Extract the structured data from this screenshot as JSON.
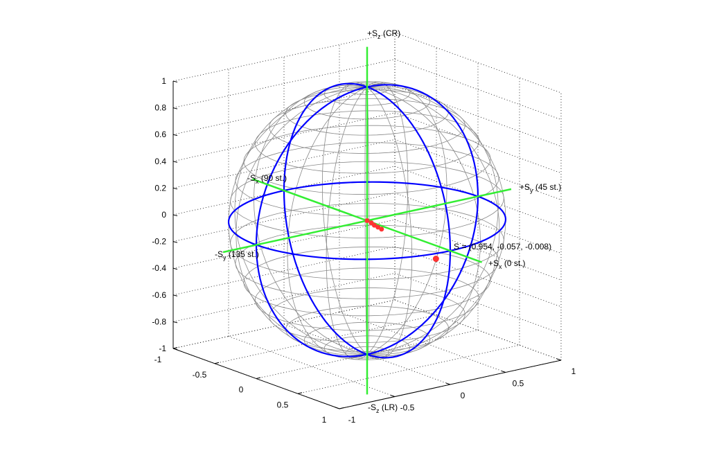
{
  "chart_data": {
    "type": "scatter3d",
    "title": "",
    "axes": {
      "x_ticks": [
        "-1",
        "-0.5",
        "0",
        "0.5",
        "1"
      ],
      "y_ticks": [
        "-1",
        "-0.5",
        "0",
        "0.5",
        "1"
      ],
      "z_ticks": [
        "-1",
        "-0.8",
        "-0.6",
        "-0.4",
        "-0.2",
        "0",
        "0.2",
        "0.4",
        "0.6",
        "0.8",
        "1"
      ],
      "xlim": [
        -1,
        1
      ],
      "ylim": [
        -1,
        1
      ],
      "zlim": [
        -1,
        1
      ],
      "grid": true
    },
    "sphere": {
      "type": "wireframe unit sphere",
      "mesh_color": "#888888",
      "great_circle_color": "#0000ff"
    },
    "axis_lines_color": "#33ee33",
    "axis_labels": {
      "pz": {
        "main": "+S",
        "sub": "z",
        "rest": " (CR)"
      },
      "mz": {
        "main": "-S",
        "sub": "z",
        "rest": " (LR)"
      },
      "py": {
        "main": "+S",
        "sub": "y",
        "rest": " (45 st.)"
      },
      "my": {
        "main": "-S",
        "sub": "y",
        "rest": " (135 st.)"
      },
      "px": {
        "main": "+S",
        "sub": "x",
        "rest": " (0 st.)"
      },
      "mx": {
        "main": "-S",
        "sub": "x",
        "rest": " (90 st.)"
      }
    },
    "point_annotation": "S = (0.954, -0.057, -0.008)",
    "point": {
      "x": 0.954,
      "y": -0.057,
      "z": -0.008,
      "color": "#ff3333"
    },
    "trajectory": [
      [
        0.0,
        0.0,
        0.0
      ],
      [
        0.05,
        0.0,
        -0.005
      ],
      [
        0.1,
        -0.01,
        -0.01
      ],
      [
        0.15,
        -0.015,
        -0.012
      ],
      [
        0.2,
        -0.02,
        -0.015
      ]
    ]
  }
}
